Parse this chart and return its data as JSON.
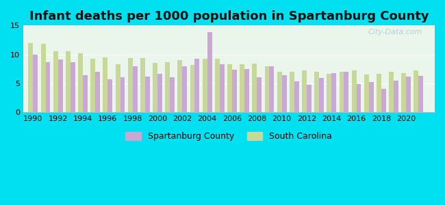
{
  "title": "Infant deaths per 1000 population in Spartanburg County",
  "years": [
    1990,
    1991,
    1992,
    1993,
    1994,
    1995,
    1996,
    1997,
    1998,
    1999,
    2000,
    2001,
    2002,
    2003,
    2004,
    2005,
    2006,
    2007,
    2008,
    2009,
    2010,
    2011,
    2012,
    2013,
    2014,
    2015,
    2016,
    2017,
    2018,
    2019,
    2020,
    2021
  ],
  "spartanburg": [
    10.0,
    8.7,
    9.1,
    8.6,
    6.4,
    7.0,
    5.7,
    6.1,
    8.0,
    6.2,
    6.7,
    6.1,
    8.0,
    9.2,
    13.8,
    8.3,
    7.3,
    7.5,
    6.0,
    8.0,
    6.4,
    5.3,
    4.8,
    5.9,
    6.8,
    7.0,
    4.9,
    5.2,
    4.0,
    5.5,
    6.2,
    6.3
  ],
  "south_carolina": [
    12.0,
    11.8,
    10.5,
    10.5,
    10.2,
    9.2,
    9.5,
    8.3,
    9.4,
    9.4,
    8.5,
    8.6,
    9.0,
    8.2,
    9.2,
    9.3,
    8.3,
    8.3,
    8.4,
    8.0,
    7.0,
    7.0,
    7.2,
    7.0,
    6.6,
    7.0,
    7.2,
    6.5,
    6.6,
    7.0,
    6.8,
    7.2
  ],
  "spartanburg_color": "#c9a8d4",
  "sc_color": "#c8d89a",
  "bg_outer": "#00e0f0",
  "bg_plot": "#eaf5ec",
  "ylim": [
    0,
    15
  ],
  "yticks": [
    0,
    5,
    10,
    15
  ],
  "title_fontsize": 13,
  "bar_width": 0.38,
  "watermark": "City-Data.com"
}
